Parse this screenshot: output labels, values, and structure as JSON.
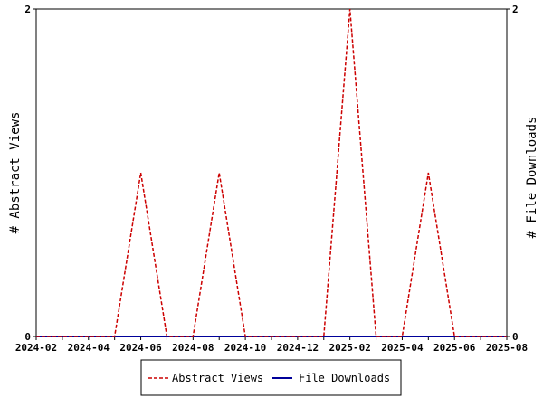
{
  "chart_data": {
    "type": "line",
    "x": [
      "2024-02",
      "2024-03",
      "2024-04",
      "2024-05",
      "2024-06",
      "2024-07",
      "2024-08",
      "2024-09",
      "2024-10",
      "2024-11",
      "2024-12",
      "2025-01",
      "2025-02",
      "2025-03",
      "2025-04",
      "2025-05",
      "2025-06",
      "2025-07",
      "2025-08"
    ],
    "x_ticks": [
      "2024-02",
      "2024-04",
      "2024-06",
      "2024-08",
      "2024-10",
      "2024-12",
      "2025-02",
      "2025-04",
      "2025-06",
      "2025-08"
    ],
    "series": [
      {
        "name": "Abstract Views",
        "axis": "left",
        "color": "#cc0000",
        "dash": "dashed",
        "values": [
          0,
          0,
          0,
          0,
          1,
          0,
          0,
          1,
          0,
          0,
          0,
          0,
          2,
          0,
          0,
          1,
          0,
          0,
          0
        ]
      },
      {
        "name": "File Downloads",
        "axis": "right",
        "color": "#000099",
        "dash": "solid",
        "values": [
          0,
          0,
          0,
          0,
          0,
          0,
          0,
          0,
          0,
          0,
          0,
          0,
          0,
          0,
          0,
          0,
          0,
          0,
          0
        ]
      }
    ],
    "ylabel_left": "# Abstract Views",
    "ylabel_right": "# File Downloads",
    "ylim_left": [
      0,
      2
    ],
    "ylim_right": [
      0,
      2
    ],
    "y_ticks_left": [
      "0",
      "2"
    ],
    "y_ticks_right": [
      "0",
      "2"
    ],
    "grid": false,
    "legend_placement": "bottom-center"
  }
}
